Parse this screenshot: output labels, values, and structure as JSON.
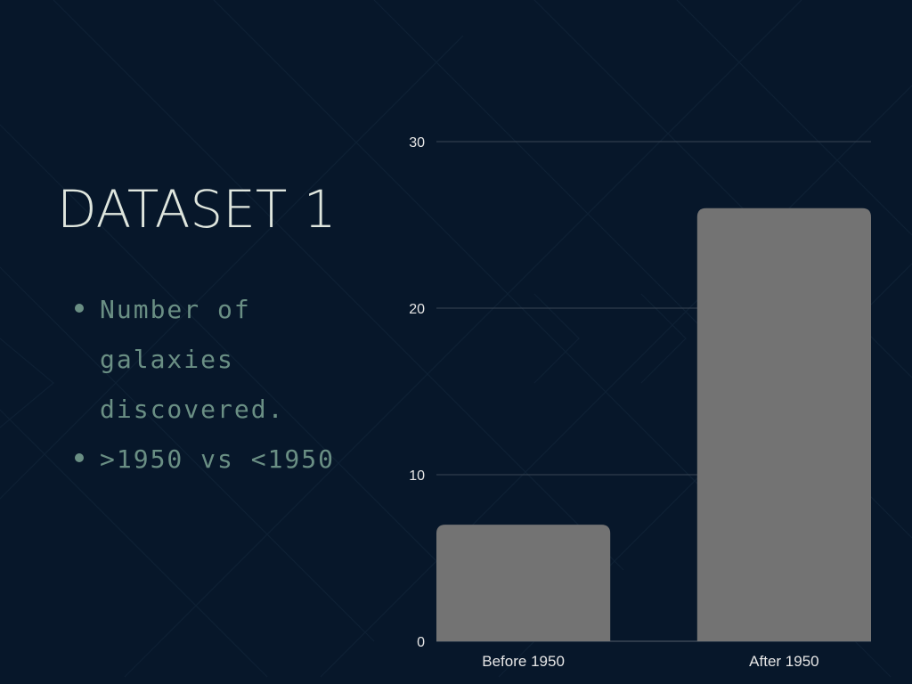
{
  "slide": {
    "title": "DATASET 1",
    "bullets": [
      "Number of galaxies discovered.",
      ">1950 vs <1950"
    ]
  },
  "colors": {
    "background": "#07172a",
    "title": "#dfe6de",
    "bullet_text": "#6a8f84",
    "bar": "#737373",
    "gridline": "#3a4654",
    "axis_text": "#e6e6e6"
  },
  "chart_data": {
    "type": "bar",
    "categories": [
      "Before 1950",
      "After 1950"
    ],
    "values": [
      7,
      26
    ],
    "title": "",
    "xlabel": "",
    "ylabel": "",
    "ylim": [
      0,
      30
    ],
    "yticks": [
      0,
      10,
      20,
      30
    ],
    "grid": true,
    "legend": "none"
  }
}
